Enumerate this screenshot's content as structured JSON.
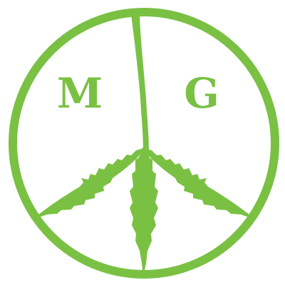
{
  "logo": {
    "letters": {
      "left": "M",
      "right": "G"
    },
    "colors": {
      "primary": "#7ac143",
      "background": "#ffffff"
    },
    "icon": "peace-sign-cannabis-leaf-icon"
  }
}
